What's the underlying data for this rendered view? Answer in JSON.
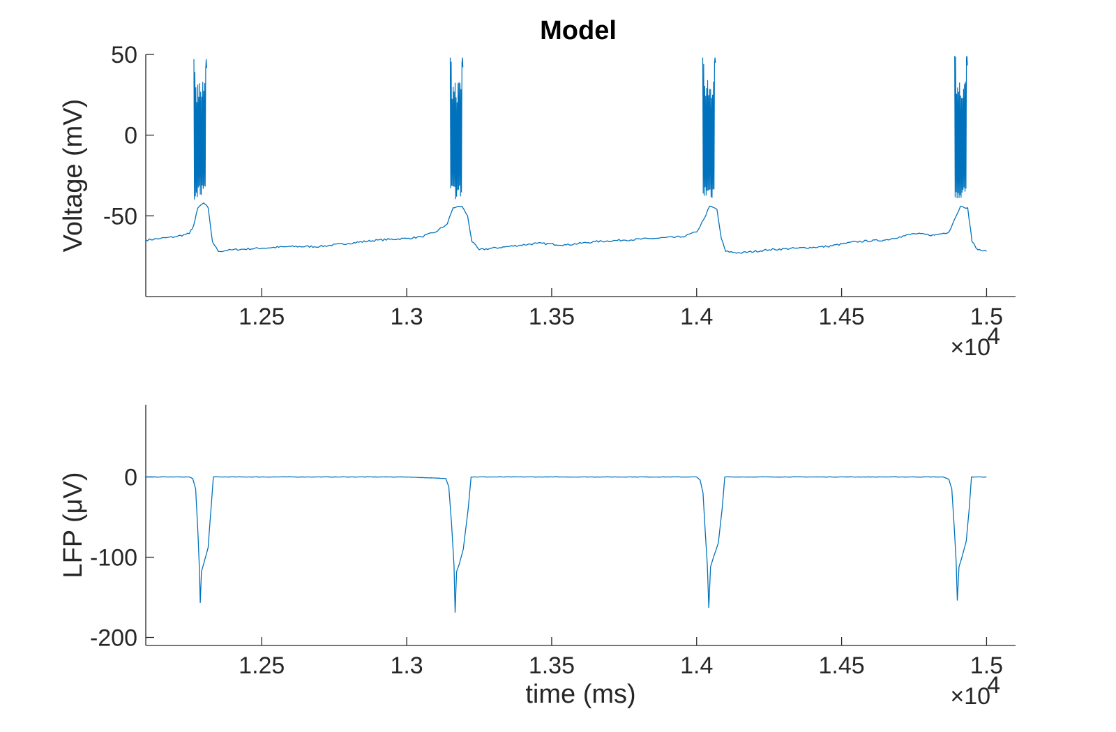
{
  "title": "Model",
  "colors": {
    "trace": "#0072BD",
    "axis": "#262626",
    "background": "#ffffff"
  },
  "chart_data": [
    {
      "type": "line",
      "name": "voltage-panel",
      "ylabel": "Voltage (mV)",
      "xlabel": "",
      "xlim": [
        12100,
        15100
      ],
      "ylim": [
        -100,
        50
      ],
      "x_ticks": [
        12500,
        13000,
        13500,
        14000,
        14500,
        15000
      ],
      "x_tick_labels": [
        "1.25",
        "1.3",
        "1.35",
        "1.4",
        "1.45",
        "1.5"
      ],
      "y_ticks": [
        50,
        0,
        -50
      ],
      "y_tick_labels": [
        "50",
        "0",
        "-50"
      ],
      "x_exponent_label": "×10",
      "x_exponent_power": "4",
      "grid": false,
      "burst_times": [
        12278,
        13162,
        14033,
        14902
      ],
      "burst_peaks": [
        47,
        48,
        48,
        49
      ],
      "series": [
        {
          "points": [
            [
              12100,
              -65
            ],
            [
              12150,
              -64
            ],
            [
              12200,
              -63
            ],
            [
              12250,
              -61
            ],
            [
              12265,
              -56
            ],
            [
              12280,
              -45
            ],
            [
              12300,
              -42
            ],
            [
              12315,
              -45
            ],
            [
              12330,
              -66
            ],
            [
              12350,
              -72
            ],
            [
              12400,
              -71
            ],
            [
              12500,
              -70
            ],
            [
              12600,
              -69
            ],
            [
              12700,
              -69
            ],
            [
              12800,
              -67
            ],
            [
              12900,
              -65
            ],
            [
              13000,
              -64
            ],
            [
              13050,
              -63
            ],
            [
              13100,
              -60
            ],
            [
              13140,
              -55
            ],
            [
              13160,
              -45
            ],
            [
              13190,
              -44
            ],
            [
              13210,
              -50
            ],
            [
              13225,
              -66
            ],
            [
              13250,
              -71
            ],
            [
              13350,
              -69
            ],
            [
              13450,
              -67
            ],
            [
              13550,
              -68
            ],
            [
              13650,
              -66
            ],
            [
              13750,
              -65
            ],
            [
              13850,
              -64
            ],
            [
              13950,
              -63
            ],
            [
              14000,
              -60
            ],
            [
              14025,
              -52
            ],
            [
              14045,
              -44
            ],
            [
              14070,
              -46
            ],
            [
              14085,
              -64
            ],
            [
              14100,
              -72
            ],
            [
              14150,
              -73
            ],
            [
              14250,
              -71
            ],
            [
              14350,
              -70
            ],
            [
              14450,
              -69
            ],
            [
              14550,
              -66
            ],
            [
              14650,
              -65
            ],
            [
              14700,
              -63
            ],
            [
              14750,
              -61
            ],
            [
              14820,
              -62
            ],
            [
              14870,
              -60
            ],
            [
              14890,
              -52
            ],
            [
              14910,
              -44
            ],
            [
              14935,
              -45
            ],
            [
              14950,
              -66
            ],
            [
              14970,
              -71
            ],
            [
              15000,
              -72
            ]
          ]
        }
      ]
    },
    {
      "type": "line",
      "name": "lfp-panel",
      "ylabel": "LFP (μV)",
      "xlabel": "time (ms)",
      "xlim": [
        12100,
        15100
      ],
      "ylim": [
        -210,
        90
      ],
      "x_ticks": [
        12500,
        13000,
        13500,
        14000,
        14500,
        15000
      ],
      "x_tick_labels": [
        "1.25",
        "1.3",
        "1.35",
        "1.4",
        "1.45",
        "1.5"
      ],
      "y_ticks": [
        0,
        -100,
        -200
      ],
      "y_tick_labels": [
        "0",
        "-100",
        "-200"
      ],
      "x_exponent_label": "×10",
      "x_exponent_power": "4",
      "grid": false,
      "series": [
        {
          "points": [
            [
              12100,
              0
            ],
            [
              12250,
              0
            ],
            [
              12262,
              -2
            ],
            [
              12272,
              -15
            ],
            [
              12280,
              -70
            ],
            [
              12285,
              -115
            ],
            [
              12288,
              -157
            ],
            [
              12292,
              -118
            ],
            [
              12300,
              -108
            ],
            [
              12315,
              -88
            ],
            [
              12325,
              -40
            ],
            [
              12333,
              0
            ],
            [
              13000,
              0
            ],
            [
              13135,
              -2
            ],
            [
              13145,
              -12
            ],
            [
              13155,
              -60
            ],
            [
              13163,
              -110
            ],
            [
              13167,
              -169
            ],
            [
              13172,
              -118
            ],
            [
              13180,
              -110
            ],
            [
              13195,
              -90
            ],
            [
              13212,
              -40
            ],
            [
              13222,
              0
            ],
            [
              14000,
              0
            ],
            [
              14012,
              -4
            ],
            [
              14022,
              -20
            ],
            [
              14030,
              -70
            ],
            [
              14037,
              -110
            ],
            [
              14042,
              -163
            ],
            [
              14048,
              -112
            ],
            [
              14060,
              -98
            ],
            [
              14075,
              -82
            ],
            [
              14088,
              -40
            ],
            [
              14097,
              0
            ],
            [
              14850,
              0
            ],
            [
              14870,
              -3
            ],
            [
              14880,
              -15
            ],
            [
              14888,
              -60
            ],
            [
              14895,
              -105
            ],
            [
              14899,
              -154
            ],
            [
              14905,
              -112
            ],
            [
              14915,
              -100
            ],
            [
              14930,
              -80
            ],
            [
              14940,
              -40
            ],
            [
              14948,
              0
            ],
            [
              15000,
              0
            ]
          ]
        }
      ]
    }
  ]
}
